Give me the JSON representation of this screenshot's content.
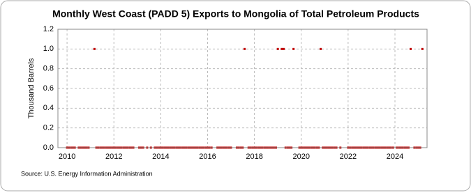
{
  "chart_data": {
    "type": "scatter",
    "title": "Monthly West Coast (PADD 5) Exports to Mongolia of Total Petroleum Products",
    "y_label": "Thousand Barrels",
    "source": "Source: U.S. Energy Information Administration",
    "xlim": [
      2009.61,
      2025.37
    ],
    "ylim": [
      0,
      1.2
    ],
    "xticks": [
      2010,
      2012,
      2014,
      2016,
      2018,
      2020,
      2022,
      2024
    ],
    "yticks": [
      {
        "value": 0,
        "label": "0.0"
      },
      0.2,
      0.4,
      0.6,
      0.8,
      {
        "value": 1,
        "label": "1.0"
      },
      1.2
    ],
    "grid": true,
    "series": [
      {
        "color": "#c00000",
        "x": [
          2010.0,
          2010.08,
          2010.17,
          2010.25,
          2010.33,
          2010.5,
          2010.58,
          2010.67,
          2010.75,
          2010.83,
          2010.92,
          2011.17,
          2011.25,
          2011.33,
          2011.42,
          2011.5,
          2011.58,
          2011.67,
          2011.75,
          2011.83,
          2011.92,
          2012.0,
          2012.08,
          2012.17,
          2012.25,
          2012.33,
          2012.42,
          2012.5,
          2012.58,
          2012.67,
          2012.75,
          2012.83,
          2013.08,
          2013.17,
          2013.25,
          2013.42,
          2013.58,
          2013.75,
          2013.83,
          2013.92,
          2014.0,
          2014.08,
          2014.17,
          2014.25,
          2014.33,
          2014.42,
          2014.5,
          2014.58,
          2014.67,
          2014.75,
          2014.83,
          2014.92,
          2015.0,
          2015.08,
          2015.17,
          2015.25,
          2015.33,
          2015.42,
          2015.5,
          2015.58,
          2015.67,
          2015.75,
          2015.83,
          2015.92,
          2016.0,
          2016.08,
          2016.17,
          2016.42,
          2016.5,
          2016.58,
          2016.67,
          2016.75,
          2016.83,
          2016.92,
          2017.0,
          2017.25,
          2017.33,
          2017.42,
          2017.5,
          2017.58,
          2017.75,
          2017.83,
          2017.92,
          2018.0,
          2018.08,
          2018.17,
          2018.25,
          2018.33,
          2018.42,
          2018.5,
          2018.58,
          2018.67,
          2018.75,
          2018.83,
          2018.92,
          2019.0,
          2019.17,
          2019.25,
          2019.33,
          2019.42,
          2019.5,
          2019.58,
          2019.67,
          2019.92,
          2020.0,
          2020.08,
          2020.17,
          2020.25,
          2020.33,
          2020.42,
          2020.5,
          2020.58,
          2020.67,
          2020.75,
          2020.83,
          2020.92,
          2021.0,
          2021.08,
          2021.17,
          2021.25,
          2021.33,
          2021.42,
          2021.5,
          2021.67,
          2022.0,
          2022.08,
          2022.17,
          2022.25,
          2022.33,
          2022.42,
          2022.5,
          2022.58,
          2022.67,
          2022.75,
          2022.83,
          2022.92,
          2023.0,
          2023.08,
          2023.17,
          2023.25,
          2023.33,
          2023.42,
          2023.5,
          2023.58,
          2023.67,
          2023.75,
          2023.83,
          2023.92,
          2024.08,
          2024.17,
          2024.25,
          2024.33,
          2024.42,
          2024.5,
          2024.58,
          2024.67,
          2024.83,
          2024.92,
          2025.0,
          2025.08,
          2025.17
        ],
        "values": [
          0,
          0,
          0,
          0,
          0,
          0,
          0,
          0,
          0,
          0,
          0,
          1,
          0,
          0,
          0,
          0,
          0,
          0,
          0,
          0,
          0,
          0,
          0,
          0,
          0,
          0,
          0,
          0,
          0,
          0,
          0,
          0,
          0,
          0,
          0,
          0,
          0,
          0,
          0,
          0,
          0,
          0,
          0,
          0,
          0,
          0,
          0,
          0,
          0,
          0,
          0,
          0,
          0,
          0,
          0,
          0,
          0,
          0,
          0,
          0,
          0,
          0,
          0,
          0,
          0,
          0,
          0,
          0,
          0,
          0,
          0,
          0,
          0,
          0,
          0,
          0,
          0,
          0,
          0,
          1,
          0,
          0,
          0,
          0,
          0,
          0,
          0,
          0,
          0,
          0,
          0,
          0,
          0,
          0,
          0,
          1,
          1,
          1,
          0,
          0,
          0,
          0,
          1,
          0,
          0,
          0,
          0,
          0,
          0,
          0,
          0,
          0,
          0,
          0,
          1,
          0,
          0,
          0,
          0,
          0,
          0,
          0,
          0,
          0,
          0,
          0,
          0,
          0,
          0,
          0,
          0,
          0,
          0,
          0,
          0,
          0,
          0,
          0,
          0,
          0,
          0,
          0,
          0,
          0,
          0,
          0,
          0,
          0,
          0,
          0,
          0,
          0,
          0,
          0,
          0,
          1,
          0,
          0,
          0,
          0,
          1
        ]
      }
    ]
  }
}
